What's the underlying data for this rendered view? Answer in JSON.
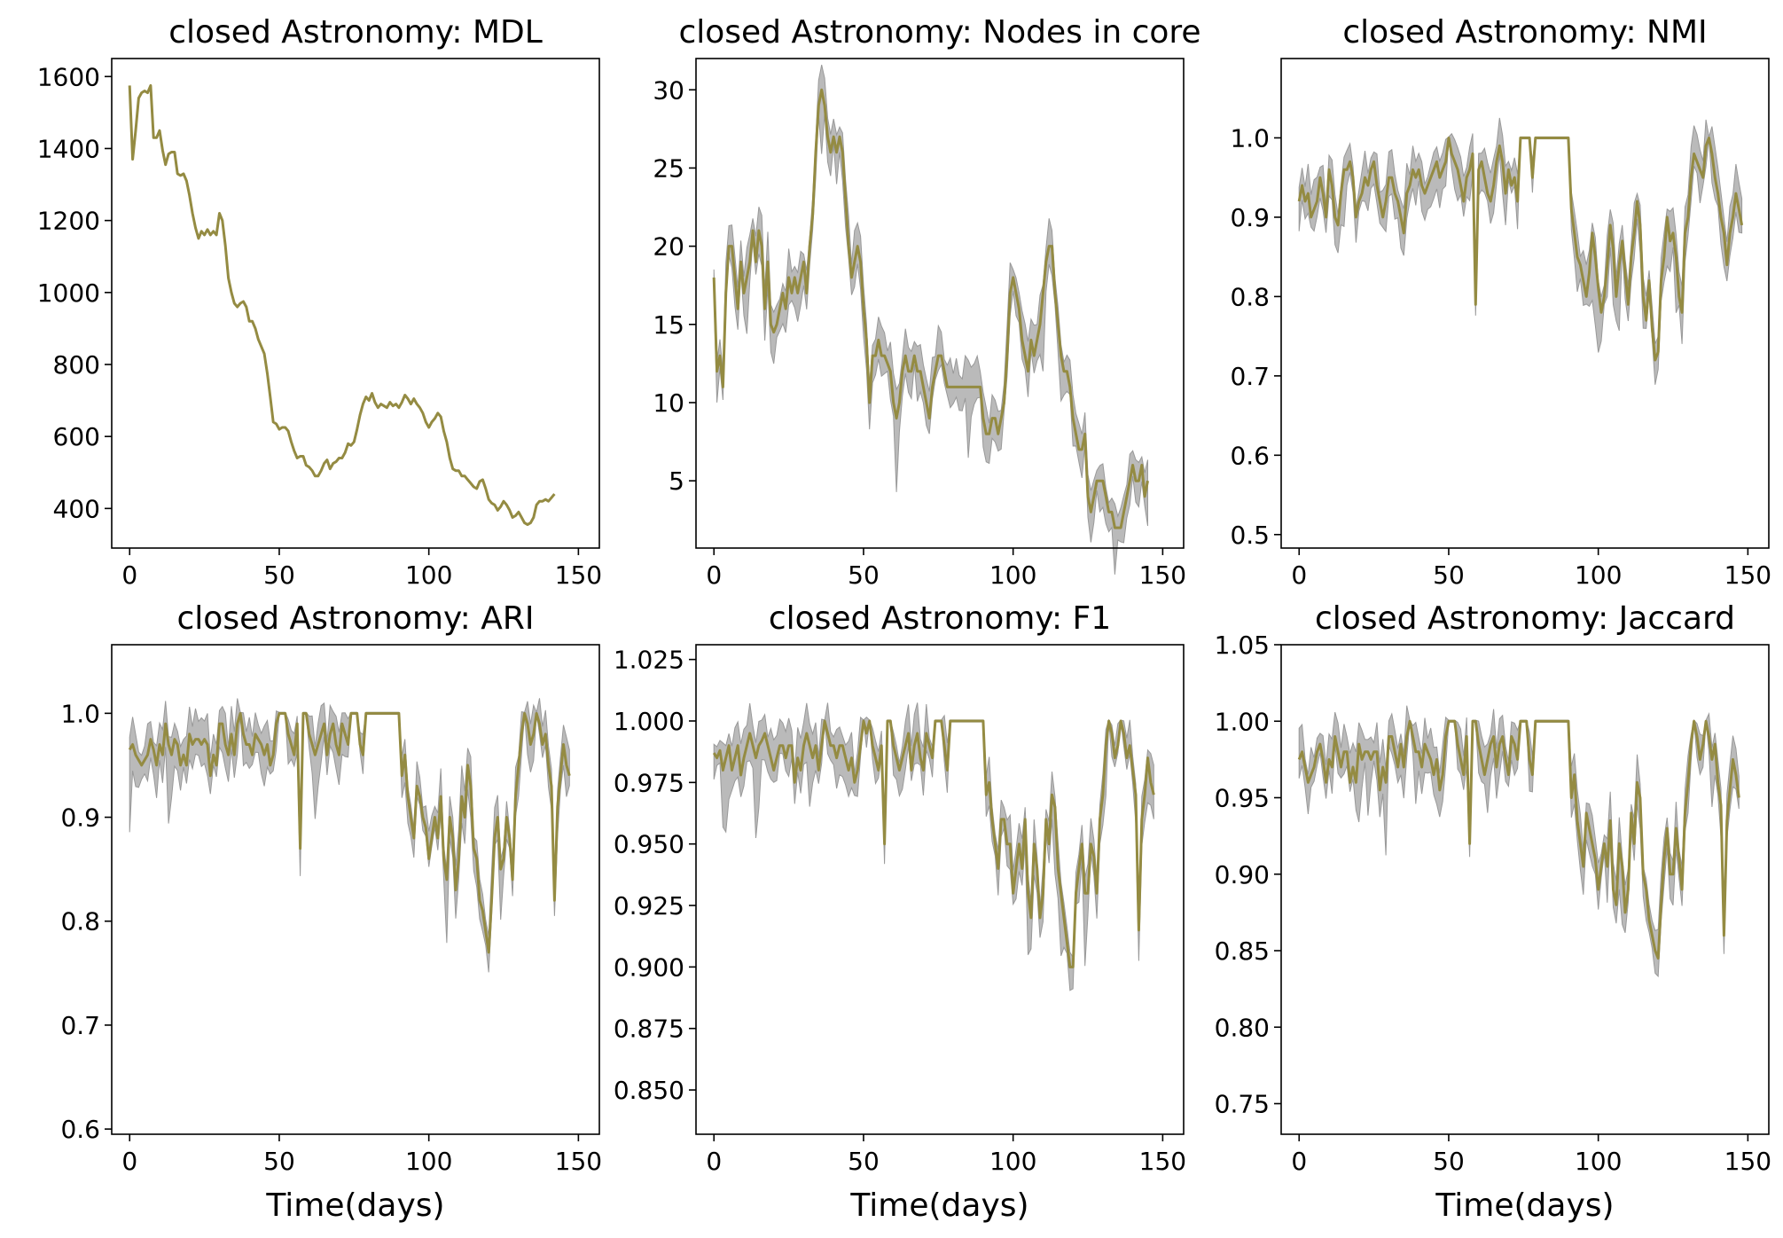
{
  "colors": {
    "line": "#948b42",
    "band": "#a9a9a9",
    "band_edge": "#999999"
  },
  "chart_data": [
    {
      "type": "line",
      "title": "closed Astronomy: MDL",
      "xlabel": "",
      "xlim": [
        -6,
        157
      ],
      "ylim": [
        290,
        1650
      ],
      "xticks": [
        0,
        50,
        100,
        150
      ],
      "xtick_labels": [
        "0",
        "50",
        "100",
        "150"
      ],
      "yticks": [
        400,
        600,
        800,
        1000,
        1200,
        1400,
        1600
      ],
      "ytick_labels": [
        "400",
        "600",
        "800",
        "1000",
        "1200",
        "1400",
        "1600"
      ],
      "band": false,
      "x_step": 1,
      "y": [
        1575,
        1370,
        1450,
        1540,
        1555,
        1560,
        1555,
        1575,
        1430,
        1430,
        1450,
        1395,
        1355,
        1385,
        1390,
        1390,
        1330,
        1325,
        1330,
        1310,
        1270,
        1220,
        1180,
        1150,
        1170,
        1160,
        1175,
        1160,
        1170,
        1160,
        1220,
        1200,
        1130,
        1040,
        1000,
        970,
        960,
        970,
        975,
        960,
        920,
        920,
        900,
        870,
        850,
        830,
        775,
        710,
        640,
        635,
        620,
        625,
        625,
        615,
        585,
        560,
        540,
        545,
        545,
        520,
        515,
        505,
        490,
        490,
        505,
        525,
        535,
        510,
        525,
        530,
        540,
        540,
        555,
        580,
        575,
        585,
        620,
        660,
        690,
        710,
        700,
        720,
        695,
        680,
        690,
        685,
        680,
        695,
        685,
        690,
        680,
        695,
        715,
        705,
        690,
        705,
        690,
        680,
        665,
        640,
        625,
        640,
        650,
        665,
        655,
        615,
        585,
        540,
        510,
        505,
        505,
        490,
        490,
        480,
        470,
        460,
        455,
        475,
        480,
        455,
        425,
        415,
        410,
        395,
        405,
        420,
        410,
        395,
        375,
        380,
        390,
        375,
        360,
        355,
        360,
        375,
        410,
        420,
        420,
        425,
        420,
        430,
        440
      ]
    },
    {
      "type": "line",
      "title": "closed Astronomy: Nodes in core",
      "xlabel": "",
      "xlim": [
        -6,
        157
      ],
      "ylim": [
        0.7,
        32
      ],
      "xticks": [
        0,
        50,
        100,
        150
      ],
      "xtick_labels": [
        "0",
        "50",
        "100",
        "150"
      ],
      "yticks": [
        5,
        10,
        15,
        20,
        25,
        30
      ],
      "ytick_labels": [
        "5",
        "10",
        "15",
        "20",
        "25",
        "30"
      ],
      "band": true,
      "x_step": 1,
      "y": [
        18,
        12,
        13,
        11,
        17,
        20,
        20,
        18,
        16,
        19,
        17,
        18,
        19,
        21,
        19,
        21,
        20,
        16,
        19,
        15,
        14.5,
        15,
        16,
        17,
        16,
        18,
        17,
        18,
        17,
        18,
        19,
        17,
        20,
        22,
        26,
        29,
        30,
        29,
        27,
        26,
        27,
        26,
        27,
        26,
        23,
        20,
        18,
        19,
        20,
        19,
        16,
        14,
        10,
        13,
        13,
        14,
        13,
        13,
        12.5,
        12,
        10,
        9,
        10,
        12,
        13,
        12,
        12,
        13,
        12,
        12,
        11,
        10,
        9,
        11,
        12,
        13,
        13,
        12,
        11,
        11,
        11,
        11,
        11,
        11,
        11,
        11,
        11,
        11,
        11,
        11,
        9,
        8,
        8,
        9,
        9,
        8,
        9,
        10,
        13,
        17,
        18,
        17,
        16,
        14,
        13,
        12,
        14,
        13,
        14,
        15,
        17,
        19,
        20,
        20,
        17,
        15,
        13,
        12,
        12,
        11,
        9,
        8,
        7,
        7,
        8,
        4,
        3,
        4,
        5,
        5,
        5,
        4,
        3,
        3,
        2,
        2,
        2,
        3,
        4,
        5,
        6,
        5,
        5,
        6,
        4,
        5
      ]
    },
    {
      "type": "line",
      "title": "closed Astronomy: NMI",
      "xlabel": "",
      "xlim": [
        -6,
        157
      ],
      "ylim": [
        0.483,
        1.1
      ],
      "xticks": [
        0,
        50,
        100,
        150
      ],
      "xtick_labels": [
        "0",
        "50",
        "100",
        "150"
      ],
      "yticks": [
        0.5,
        0.6,
        0.7,
        0.8,
        0.9,
        1.0
      ],
      "ytick_labels": [
        "0.5",
        "0.6",
        "0.7",
        "0.8",
        "0.9",
        "1.0"
      ],
      "band": true,
      "x_step": 1,
      "y": [
        0.92,
        0.94,
        0.92,
        0.93,
        0.9,
        0.91,
        0.92,
        0.95,
        0.93,
        0.9,
        0.96,
        0.94,
        0.9,
        0.89,
        0.93,
        0.96,
        0.96,
        0.97,
        0.95,
        0.9,
        0.92,
        0.93,
        0.95,
        0.94,
        0.96,
        0.97,
        0.94,
        0.92,
        0.9,
        0.92,
        0.95,
        0.95,
        0.93,
        0.92,
        0.9,
        0.88,
        0.93,
        0.94,
        0.96,
        0.95,
        0.96,
        0.94,
        0.93,
        0.94,
        0.95,
        0.96,
        0.97,
        0.95,
        0.96,
        0.97,
        1.0,
        0.98,
        0.97,
        0.96,
        0.94,
        0.92,
        0.95,
        0.96,
        0.98,
        0.79,
        0.96,
        0.97,
        0.95,
        0.93,
        0.92,
        0.94,
        0.97,
        0.99,
        0.97,
        0.93,
        0.96,
        0.94,
        0.95,
        0.92,
        1.0,
        1.0,
        1.0,
        1.0,
        0.95,
        1.0,
        1.0,
        1.0,
        1.0,
        1.0,
        1.0,
        1.0,
        1.0,
        1.0,
        1.0,
        1.0,
        1.0,
        0.91,
        0.88,
        0.85,
        0.84,
        0.82,
        0.8,
        0.83,
        0.88,
        0.85,
        0.81,
        0.78,
        0.8,
        0.84,
        0.89,
        0.86,
        0.8,
        0.84,
        0.87,
        0.83,
        0.79,
        0.85,
        0.88,
        0.92,
        0.89,
        0.8,
        0.77,
        0.82,
        0.76,
        0.72,
        0.73,
        0.82,
        0.85,
        0.9,
        0.87,
        0.88,
        0.85,
        0.8,
        0.78,
        0.88,
        0.9,
        0.95,
        0.98,
        0.97,
        0.96,
        0.95,
        0.99,
        1.0,
        0.98,
        0.95,
        0.93,
        0.9,
        0.88,
        0.84,
        0.88,
        0.9,
        0.93,
        0.91,
        0.89
      ]
    },
    {
      "type": "line",
      "title": "closed Astronomy: ARI",
      "xlabel": "Time(days)",
      "xlim": [
        -6,
        157
      ],
      "ylim": [
        0.595,
        1.066
      ],
      "xticks": [
        0,
        50,
        100,
        150
      ],
      "xtick_labels": [
        "0",
        "50",
        "100",
        "150"
      ],
      "yticks": [
        0.6,
        0.7,
        0.8,
        0.9,
        1.0
      ],
      "ytick_labels": [
        "0.6",
        "0.7",
        "0.8",
        "0.9",
        "1.0"
      ],
      "band": true,
      "x_step": 1,
      "y": [
        0.965,
        0.97,
        0.96,
        0.955,
        0.95,
        0.955,
        0.96,
        0.975,
        0.965,
        0.95,
        0.97,
        0.96,
        0.99,
        0.97,
        0.96,
        0.975,
        0.97,
        0.95,
        0.96,
        0.95,
        0.98,
        0.97,
        0.975,
        0.975,
        0.97,
        0.975,
        0.97,
        0.94,
        0.96,
        0.95,
        0.99,
        0.99,
        0.97,
        0.96,
        0.98,
        0.96,
        0.99,
        1.0,
        0.98,
        0.97,
        0.97,
        0.96,
        0.98,
        0.975,
        0.97,
        0.96,
        0.97,
        0.95,
        0.96,
        0.99,
        1.0,
        1.0,
        1.0,
        0.98,
        0.97,
        0.96,
        0.99,
        0.87,
        1.0,
        1.0,
        0.98,
        0.97,
        0.96,
        0.97,
        0.98,
        0.99,
        0.96,
        0.98,
        0.99,
        0.97,
        0.96,
        0.99,
        0.98,
        0.97,
        1.0,
        1.0,
        1.0,
        0.97,
        0.96,
        1.0,
        1.0,
        1.0,
        1.0,
        1.0,
        1.0,
        1.0,
        1.0,
        1.0,
        1.0,
        1.0,
        1.0,
        0.94,
        0.96,
        0.92,
        0.9,
        0.88,
        0.93,
        0.92,
        0.9,
        0.89,
        0.86,
        0.88,
        0.9,
        0.88,
        0.92,
        0.86,
        0.84,
        0.9,
        0.88,
        0.83,
        0.86,
        0.92,
        0.9,
        0.95,
        0.93,
        0.87,
        0.86,
        0.82,
        0.81,
        0.79,
        0.77,
        0.82,
        0.88,
        0.9,
        0.85,
        0.86,
        0.9,
        0.88,
        0.84,
        0.92,
        0.95,
        0.98,
        1.0,
        0.99,
        0.97,
        0.98,
        1.0,
        0.99,
        0.97,
        0.98,
        0.95,
        0.93,
        0.82,
        0.91,
        0.94,
        0.97,
        0.95,
        0.94
      ]
    },
    {
      "type": "line",
      "title": "closed Astronomy: F1",
      "xlabel": "Time(days)",
      "xlim": [
        -6,
        157
      ],
      "ylim": [
        0.832,
        1.031
      ],
      "xticks": [
        0,
        50,
        100,
        150
      ],
      "xtick_labels": [
        "0",
        "50",
        "100",
        "150"
      ],
      "yticks": [
        0.85,
        0.875,
        0.9,
        0.925,
        0.95,
        0.975,
        1.0,
        1.025
      ],
      "ytick_labels": [
        "0.850",
        "0.875",
        "0.900",
        "0.925",
        "0.950",
        "0.975",
        "1.000",
        "1.025"
      ],
      "band": true,
      "x_step": 1,
      "y": [
        0.987,
        0.985,
        0.988,
        0.98,
        0.985,
        0.99,
        0.98,
        0.985,
        0.99,
        0.978,
        0.985,
        0.99,
        0.995,
        0.99,
        0.985,
        0.99,
        0.992,
        0.995,
        0.99,
        0.985,
        0.98,
        0.985,
        0.99,
        0.99,
        0.985,
        0.99,
        0.99,
        0.975,
        0.985,
        0.98,
        0.99,
        0.995,
        0.99,
        0.985,
        0.99,
        0.98,
        0.99,
        1.0,
        0.995,
        0.99,
        0.99,
        0.985,
        0.99,
        0.99,
        0.985,
        0.98,
        0.985,
        0.975,
        0.98,
        0.99,
        1.0,
        0.995,
        1.0,
        0.99,
        0.985,
        0.98,
        0.99,
        0.95,
        1.0,
        1.0,
        0.99,
        0.985,
        0.98,
        0.985,
        0.99,
        0.995,
        0.98,
        0.99,
        0.995,
        0.985,
        0.98,
        0.995,
        0.99,
        0.985,
        1.0,
        1.0,
        1.0,
        0.99,
        0.98,
        1.0,
        1.0,
        1.0,
        1.0,
        1.0,
        1.0,
        1.0,
        1.0,
        1.0,
        1.0,
        1.0,
        1.0,
        0.97,
        0.975,
        0.96,
        0.95,
        0.94,
        0.96,
        0.96,
        0.95,
        0.95,
        0.93,
        0.94,
        0.95,
        0.94,
        0.96,
        0.93,
        0.92,
        0.95,
        0.94,
        0.92,
        0.93,
        0.96,
        0.95,
        0.97,
        0.965,
        0.94,
        0.93,
        0.92,
        0.91,
        0.9,
        0.9,
        0.93,
        0.94,
        0.95,
        0.93,
        0.93,
        0.95,
        0.945,
        0.93,
        0.96,
        0.97,
        0.99,
        1.0,
        0.995,
        0.985,
        0.99,
        1.0,
        0.995,
        0.985,
        0.99,
        0.98,
        0.97,
        0.915,
        0.96,
        0.97,
        0.985,
        0.975,
        0.97
      ]
    },
    {
      "type": "line",
      "title": "closed Astronomy: Jaccard",
      "xlabel": "Time(days)",
      "xlim": [
        -6,
        157
      ],
      "ylim": [
        0.73,
        1.05
      ],
      "xticks": [
        0,
        50,
        100,
        150
      ],
      "xtick_labels": [
        "0",
        "50",
        "100",
        "150"
      ],
      "yticks": [
        0.75,
        0.8,
        0.85,
        0.9,
        0.95,
        1.0,
        1.05
      ],
      "ytick_labels": [
        "0.75",
        "0.80",
        "0.85",
        "0.90",
        "0.95",
        "1.00",
        "1.05"
      ],
      "band": true,
      "x_step": 1,
      "y": [
        0.975,
        0.98,
        0.97,
        0.96,
        0.965,
        0.97,
        0.98,
        0.985,
        0.975,
        0.96,
        0.975,
        0.97,
        0.99,
        0.98,
        0.97,
        0.98,
        0.98,
        0.96,
        0.97,
        0.96,
        0.985,
        0.975,
        0.98,
        0.98,
        0.975,
        0.98,
        0.98,
        0.955,
        0.97,
        0.96,
        0.99,
        0.99,
        0.98,
        0.97,
        0.985,
        0.97,
        0.99,
        1.0,
        0.99,
        0.98,
        0.98,
        0.97,
        0.985,
        0.98,
        0.975,
        0.965,
        0.975,
        0.955,
        0.965,
        0.99,
        1.0,
        1.0,
        1.0,
        0.985,
        0.975,
        0.965,
        0.99,
        0.92,
        1.0,
        1.0,
        0.985,
        0.975,
        0.965,
        0.975,
        0.985,
        0.99,
        0.97,
        0.985,
        0.99,
        0.975,
        0.965,
        0.99,
        0.985,
        0.975,
        1.0,
        1.0,
        1.0,
        0.975,
        0.965,
        1.0,
        1.0,
        1.0,
        1.0,
        1.0,
        1.0,
        1.0,
        1.0,
        1.0,
        1.0,
        1.0,
        1.0,
        0.95,
        0.965,
        0.935,
        0.92,
        0.905,
        0.94,
        0.93,
        0.92,
        0.91,
        0.89,
        0.905,
        0.92,
        0.905,
        0.935,
        0.89,
        0.88,
        0.92,
        0.905,
        0.875,
        0.89,
        0.94,
        0.92,
        0.96,
        0.95,
        0.9,
        0.89,
        0.87,
        0.86,
        0.85,
        0.845,
        0.88,
        0.91,
        0.93,
        0.9,
        0.9,
        0.93,
        0.91,
        0.89,
        0.94,
        0.96,
        0.985,
        1.0,
        0.99,
        0.975,
        0.985,
        1.0,
        0.99,
        0.975,
        0.985,
        0.96,
        0.945,
        0.86,
        0.935,
        0.955,
        0.975,
        0.965,
        0.95
      ]
    }
  ]
}
